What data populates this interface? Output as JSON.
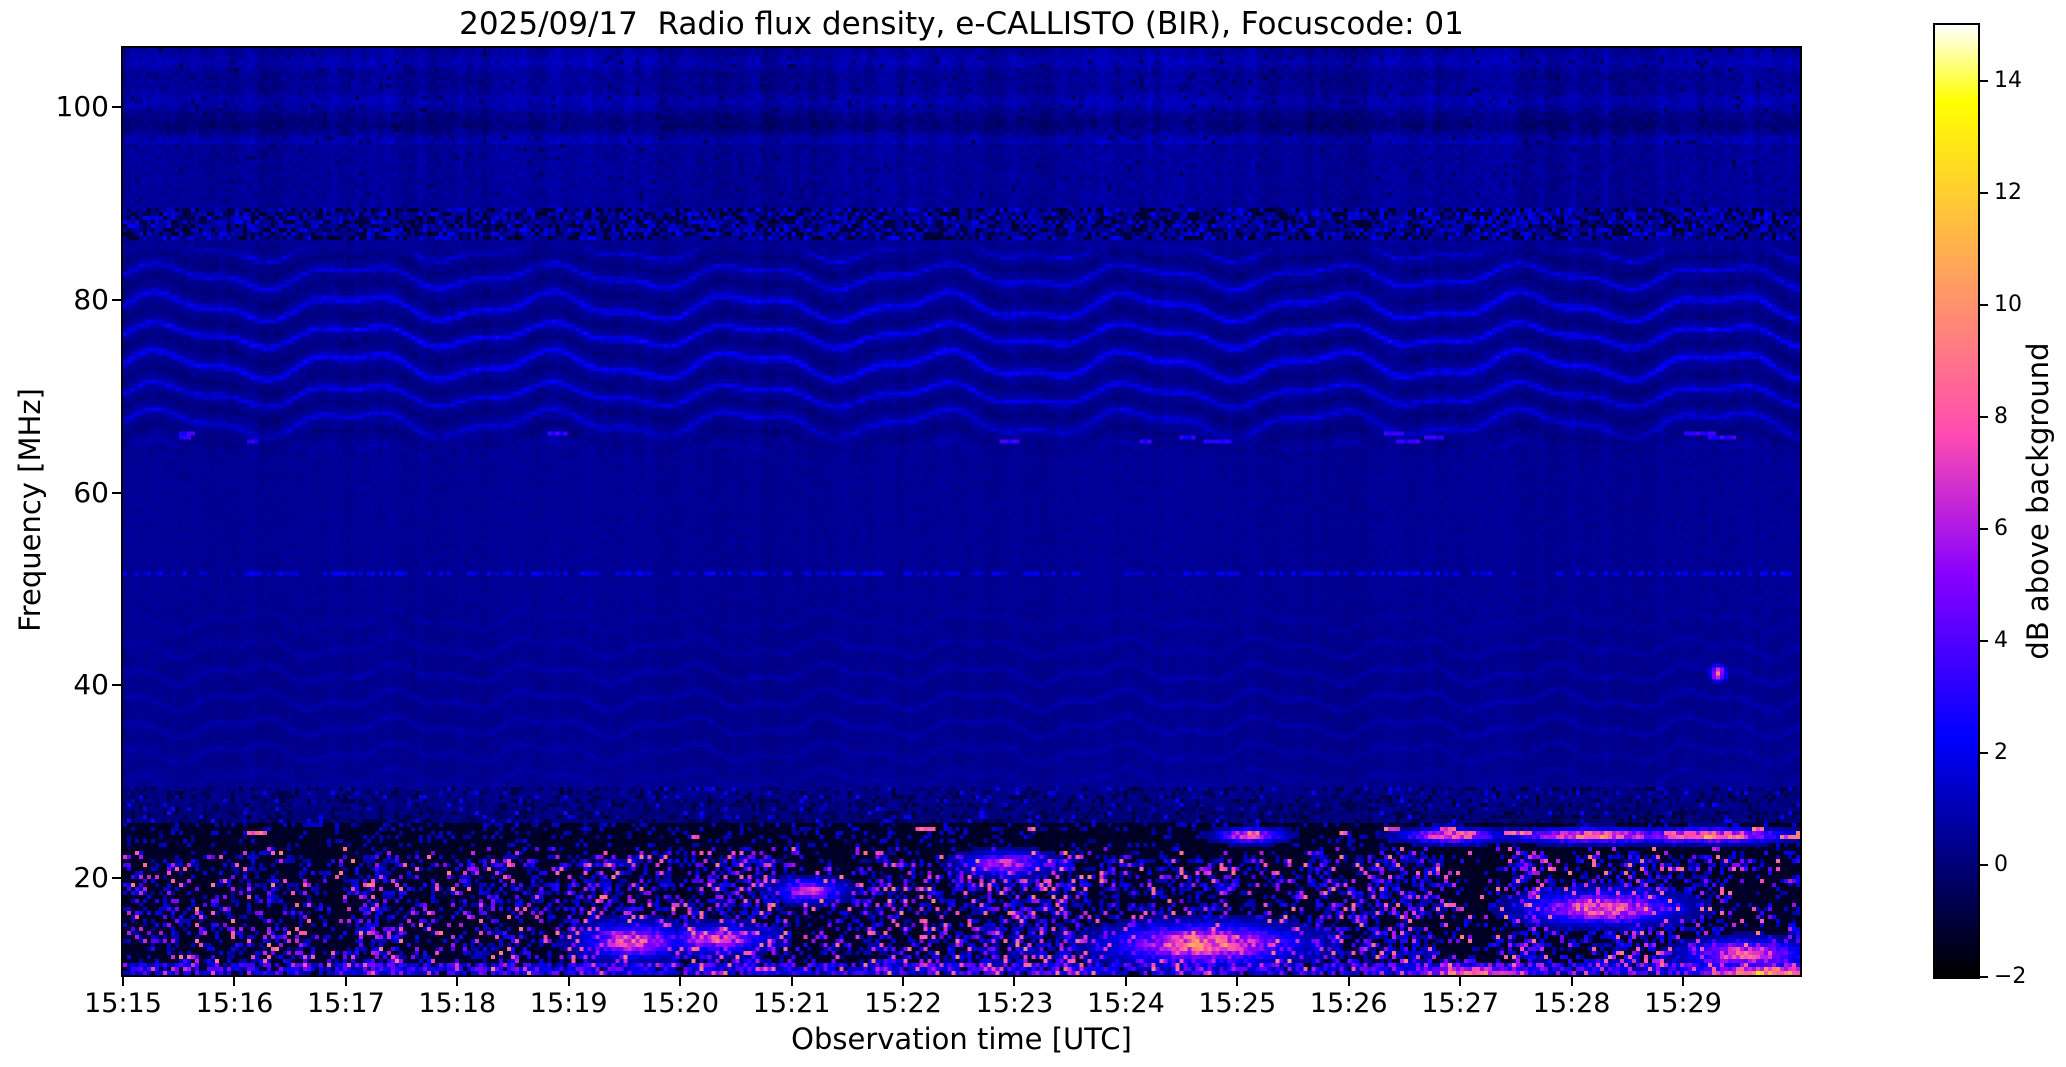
{
  "chart_data": {
    "type": "heatmap",
    "title": "2025/09/17  Radio flux density, e-CALLISTO (BIR), Focuscode: 01",
    "xlabel": "Observation time [UTC]",
    "ylabel": "Frequency [MHz]",
    "colorbar_label": "dB above background",
    "colormap": "gnuplot2",
    "colormap_key_colors": {
      "low": "#000000",
      "blue": "#0000ff",
      "violet": "#7d00f2",
      "magenta": "#e032c0",
      "pink": "#ff57a8",
      "orange": "#ffa64d",
      "yellow": "#ffff2a",
      "high": "#ffffff"
    },
    "x_tick_labels": [
      "15:15",
      "15:16",
      "15:17",
      "15:18",
      "15:19",
      "15:20",
      "15:21",
      "15:22",
      "15:23",
      "15:24",
      "15:25",
      "15:26",
      "15:27",
      "15:28",
      "15:29"
    ],
    "x_range_min": [
      0,
      15.05
    ],
    "y_tick_labels": [
      "100",
      "80",
      "60",
      "40",
      "20"
    ],
    "y_tick_values": [
      100,
      80,
      60,
      40,
      20
    ],
    "freq_range_mhz": [
      9.95,
      106.12
    ],
    "colorbar_tick_labels": [
      "14",
      "12",
      "10",
      "8",
      "6",
      "4",
      "2",
      "0",
      "−2"
    ],
    "colorbar_tick_values": [
      14,
      12,
      10,
      8,
      6,
      4,
      2,
      0,
      -2
    ],
    "colorbar_range_db": [
      -2,
      15
    ],
    "legend": "none",
    "grid": "off",
    "features": {
      "seed": 917,
      "top_noise_band": {
        "f0": 96.0,
        "f1": 106.12,
        "base_db": 0.62,
        "streaks": 0.7
      },
      "rfi_speckle_band": {
        "f0": 86.3,
        "f1": 89.6
      },
      "fringe_band": {
        "f0": 64.0,
        "f1": 85.5,
        "spacing_mhz": 3.05,
        "center_mhz": 75.5,
        "sigma_mhz": 8.5,
        "strength_db": 1.7,
        "wave_period_min": [
          1.75,
          0.72
        ],
        "wave_amp_mhz": [
          1.05,
          0.42
        ]
      },
      "dash_line_mhz": 65.7,
      "dotted_line_mhz": 51.6,
      "ripple_band": {
        "f0": 29.5,
        "f1": 48.0,
        "center_mhz": 38.0,
        "sigma_mhz": 7.0,
        "spacing_mhz": 2.75,
        "strength_db": 0.5
      },
      "noise_floor_band": {
        "f0": 25.6,
        "f1": 29.5
      },
      "black_band": {
        "f0": 23.2,
        "f1": 25.6,
        "pink_dash_mhz": 24.7
      },
      "speckle_band": {
        "f0": 9.95,
        "f1": 23.2,
        "activity_rows_mhz": [
          21.6,
          19.2,
          16.9,
          14.4,
          12.3,
          10.5
        ]
      },
      "hotspots_min_mhz_w_h_db": [
        [
          4.55,
          13.7,
          0.3,
          1.2,
          7.5
        ],
        [
          5.3,
          13.9,
          0.3,
          0.9,
          7.0
        ],
        [
          6.15,
          18.9,
          0.2,
          0.8,
          6.5
        ],
        [
          7.9,
          21.7,
          0.25,
          0.8,
          6.5
        ],
        [
          9.7,
          13.4,
          0.55,
          1.4,
          9.0
        ],
        [
          10.1,
          24.6,
          0.2,
          0.5,
          8.0
        ],
        [
          11.9,
          24.6,
          0.3,
          0.5,
          8.5
        ],
        [
          13.2,
          24.6,
          0.5,
          0.5,
          9.0
        ],
        [
          14.2,
          24.6,
          0.5,
          0.5,
          9.5
        ],
        [
          13.25,
          17.1,
          0.45,
          1.1,
          8.5
        ],
        [
          14.55,
          12.3,
          0.35,
          1.0,
          8.0
        ],
        [
          12.1,
          10.4,
          0.4,
          0.5,
          9.0
        ],
        [
          14.75,
          10.4,
          0.5,
          0.6,
          10.5
        ],
        [
          14.3,
          41.5,
          0.05,
          0.6,
          9.0
        ]
      ]
    }
  }
}
